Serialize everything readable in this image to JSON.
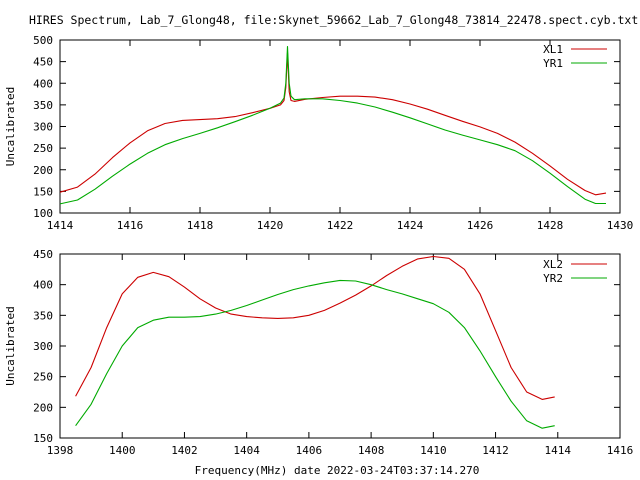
{
  "figure_title": "HIRES Spectrum, Lab_7_Glong48, file:Skynet_59662_Lab_7_Glong48_73814_22478.spect.cyb.txt",
  "footer_label": "Frequency(MHz) date 2022-03-24T03:37:14.270",
  "colors": {
    "red": "#cc0000",
    "green": "#00aa00",
    "axes": "#000000",
    "background": "#ffffff"
  },
  "chart_data": [
    {
      "type": "line",
      "ylabel": "Uncalibrated",
      "xlim": [
        1414,
        1430
      ],
      "ylim": [
        100,
        500
      ],
      "xticks": [
        1414,
        1416,
        1418,
        1420,
        1422,
        1424,
        1426,
        1428,
        1430
      ],
      "yticks": [
        100,
        150,
        200,
        250,
        300,
        350,
        400,
        450,
        500
      ],
      "grid": false,
      "legend": "top-right",
      "series": [
        {
          "name": "XL1",
          "color": "#cc0000",
          "x": [
            1414.0,
            1414.5,
            1415.0,
            1415.5,
            1416.0,
            1416.5,
            1417.0,
            1417.5,
            1418.0,
            1418.5,
            1419.0,
            1419.5,
            1420.0,
            1420.3,
            1420.4,
            1420.45,
            1420.5,
            1420.55,
            1420.6,
            1420.7,
            1421.0,
            1421.5,
            1422.0,
            1422.5,
            1423.0,
            1423.5,
            1424.0,
            1424.5,
            1425.0,
            1425.5,
            1426.0,
            1426.5,
            1427.0,
            1427.5,
            1428.0,
            1428.5,
            1429.0,
            1429.3,
            1429.6
          ],
          "y": [
            148,
            160,
            190,
            228,
            262,
            290,
            307,
            314,
            316,
            318,
            323,
            332,
            342,
            350,
            360,
            390,
            470,
            380,
            360,
            358,
            363,
            367,
            370,
            370,
            368,
            362,
            352,
            340,
            326,
            312,
            299,
            284,
            264,
            238,
            209,
            178,
            152,
            142,
            146
          ]
        },
        {
          "name": "YR1",
          "color": "#00aa00",
          "x": [
            1414.0,
            1414.5,
            1415.0,
            1415.5,
            1416.0,
            1416.5,
            1417.0,
            1417.5,
            1418.0,
            1418.5,
            1419.0,
            1419.5,
            1420.0,
            1420.3,
            1420.4,
            1420.45,
            1420.5,
            1420.55,
            1420.6,
            1420.7,
            1421.0,
            1421.5,
            1422.0,
            1422.5,
            1423.0,
            1423.5,
            1424.0,
            1424.5,
            1425.0,
            1425.5,
            1426.0,
            1426.5,
            1427.0,
            1427.5,
            1428.0,
            1428.5,
            1429.0,
            1429.3,
            1429.6
          ],
          "y": [
            121,
            130,
            155,
            185,
            213,
            238,
            258,
            272,
            284,
            297,
            311,
            326,
            342,
            354,
            366,
            400,
            485,
            400,
            370,
            362,
            364,
            364,
            360,
            354,
            345,
            333,
            320,
            306,
            292,
            280,
            269,
            258,
            244,
            221,
            192,
            161,
            132,
            122,
            122
          ]
        }
      ]
    },
    {
      "type": "line",
      "ylabel": "Uncalibrated",
      "xlim": [
        1398,
        1416
      ],
      "ylim": [
        150,
        450
      ],
      "xticks": [
        1398,
        1400,
        1402,
        1404,
        1406,
        1408,
        1410,
        1412,
        1414,
        1416
      ],
      "yticks": [
        150,
        200,
        250,
        300,
        350,
        400,
        450
      ],
      "grid": false,
      "legend": "top-right",
      "series": [
        {
          "name": "XL2",
          "color": "#cc0000",
          "x": [
            1398.5,
            1399.0,
            1399.5,
            1400.0,
            1400.5,
            1401.0,
            1401.5,
            1402.0,
            1402.5,
            1403.0,
            1403.5,
            1404.0,
            1404.5,
            1405.0,
            1405.5,
            1406.0,
            1406.5,
            1407.0,
            1407.5,
            1408.0,
            1408.5,
            1409.0,
            1409.5,
            1410.0,
            1410.5,
            1411.0,
            1411.5,
            1412.0,
            1412.5,
            1413.0,
            1413.5,
            1413.9
          ],
          "y": [
            218,
            265,
            330,
            385,
            412,
            420,
            413,
            396,
            377,
            362,
            352,
            348,
            346,
            345,
            346,
            350,
            358,
            370,
            383,
            398,
            415,
            430,
            442,
            446,
            443,
            425,
            385,
            325,
            265,
            225,
            213,
            217
          ]
        },
        {
          "name": "YR2",
          "color": "#00aa00",
          "x": [
            1398.5,
            1399.0,
            1399.5,
            1400.0,
            1400.5,
            1401.0,
            1401.5,
            1402.0,
            1402.5,
            1403.0,
            1403.5,
            1404.0,
            1404.5,
            1405.0,
            1405.5,
            1406.0,
            1406.5,
            1407.0,
            1407.5,
            1408.0,
            1408.5,
            1409.0,
            1409.5,
            1410.0,
            1410.5,
            1411.0,
            1411.5,
            1412.0,
            1412.5,
            1413.0,
            1413.5,
            1413.9
          ],
          "y": [
            170,
            205,
            255,
            300,
            330,
            342,
            347,
            347,
            348,
            352,
            358,
            366,
            375,
            384,
            392,
            398,
            403,
            407,
            406,
            400,
            392,
            385,
            377,
            369,
            355,
            330,
            292,
            250,
            210,
            178,
            166,
            170
          ]
        }
      ]
    }
  ]
}
